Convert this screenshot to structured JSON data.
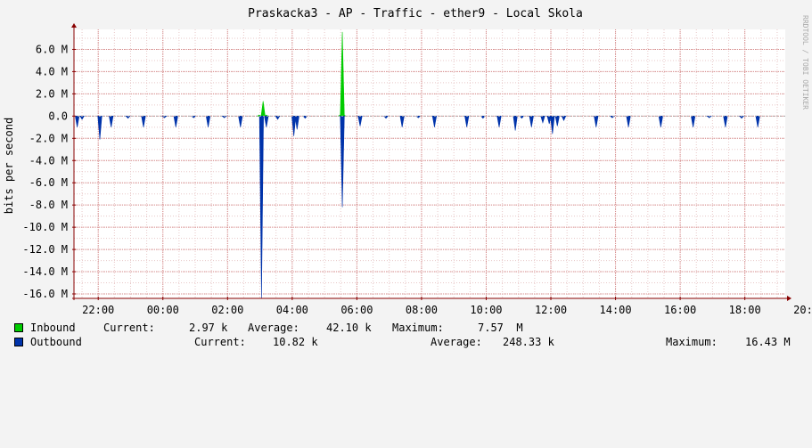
{
  "chart_data": {
    "type": "area",
    "title": "Praskacka3 - AP - Traffic - ether9 - Local Skola",
    "ylabel": "bits per second",
    "watermark": "RRDTOOL / TOBI OETIKER",
    "ylim": [
      -16.4,
      7.8
    ],
    "y_ticks": [
      6,
      4,
      2,
      0,
      -2,
      -4,
      -6,
      -8,
      -10,
      -12,
      -14,
      -16
    ],
    "y_tick_labels": [
      "6.0 M",
      "4.0 M",
      "2.0 M",
      "0.0",
      "-2.0 M",
      "-4.0 M",
      "-6.0 M",
      "-8.0 M",
      "-10.0 M",
      "-12.0 M",
      "-14.0 M",
      "-16.0 M"
    ],
    "xlim": [
      21.25,
      43.25
    ],
    "x_ticks": [
      22,
      24,
      26,
      28,
      30,
      32,
      34,
      36,
      38,
      40,
      42,
      44
    ],
    "x_tick_labels": [
      "22:00",
      "00:00",
      "02:00",
      "04:00",
      "06:00",
      "08:00",
      "10:00",
      "12:00",
      "14:00",
      "16:00",
      "18:00",
      "20:00"
    ],
    "grid": true,
    "series": [
      {
        "name": "Inbound",
        "color": "#00cc00",
        "points": [
          [
            26.98,
            0.1
          ],
          [
            27.1,
            1.35
          ],
          [
            27.2,
            0.1
          ],
          [
            29.48,
            0.1
          ],
          [
            29.55,
            7.57
          ],
          [
            29.6,
            0.1
          ]
        ]
      },
      {
        "name": "Outbound",
        "color": "#0033aa",
        "points": [
          [
            21.35,
            -1.0
          ],
          [
            21.5,
            -0.3
          ],
          [
            22.05,
            -2.1
          ],
          [
            22.4,
            -1.0
          ],
          [
            22.92,
            -0.2
          ],
          [
            23.4,
            -1.0
          ],
          [
            24.05,
            -0.15
          ],
          [
            24.4,
            -1.0
          ],
          [
            24.95,
            -0.15
          ],
          [
            25.4,
            -1.0
          ],
          [
            25.9,
            -0.15
          ],
          [
            26.4,
            -1.0
          ],
          [
            27.05,
            -16.4
          ],
          [
            27.2,
            -1.0
          ],
          [
            27.55,
            -0.3
          ],
          [
            28.05,
            -1.8
          ],
          [
            28.15,
            -1.2
          ],
          [
            28.4,
            -0.2
          ],
          [
            29.55,
            -8.2
          ],
          [
            30.1,
            -0.9
          ],
          [
            30.9,
            -0.2
          ],
          [
            31.4,
            -1.0
          ],
          [
            31.9,
            -0.15
          ],
          [
            32.4,
            -1.0
          ],
          [
            33.4,
            -1.0
          ],
          [
            33.9,
            -0.2
          ],
          [
            34.4,
            -1.0
          ],
          [
            34.9,
            -1.3
          ],
          [
            35.1,
            -0.2
          ],
          [
            35.4,
            -1.0
          ],
          [
            35.75,
            -0.6
          ],
          [
            35.95,
            -0.7
          ],
          [
            36.05,
            -1.6
          ],
          [
            36.2,
            -0.9
          ],
          [
            36.4,
            -0.4
          ],
          [
            37.4,
            -1.0
          ],
          [
            37.9,
            -0.15
          ],
          [
            38.4,
            -1.0
          ],
          [
            39.4,
            -1.0
          ],
          [
            40.4,
            -1.0
          ],
          [
            40.9,
            -0.15
          ],
          [
            41.4,
            -1.0
          ],
          [
            41.9,
            -0.2
          ],
          [
            42.4,
            -1.0
          ]
        ]
      }
    ],
    "legend": [
      {
        "name": "Inbound",
        "color": "#00cc00",
        "current_label": "Current:",
        "current": "2.97 k",
        "average_label": "Average:",
        "average": "42.10 k",
        "maximum_label": "Maximum:",
        "maximum": "7.57  M"
      },
      {
        "name": "Outbound",
        "color": "#0033aa",
        "current_label": "Current:",
        "current": "10.82 k",
        "average_label": "Average:",
        "average": "248.33 k",
        "maximum_label": "Maximum:",
        "maximum": "16.43 M"
      }
    ]
  }
}
